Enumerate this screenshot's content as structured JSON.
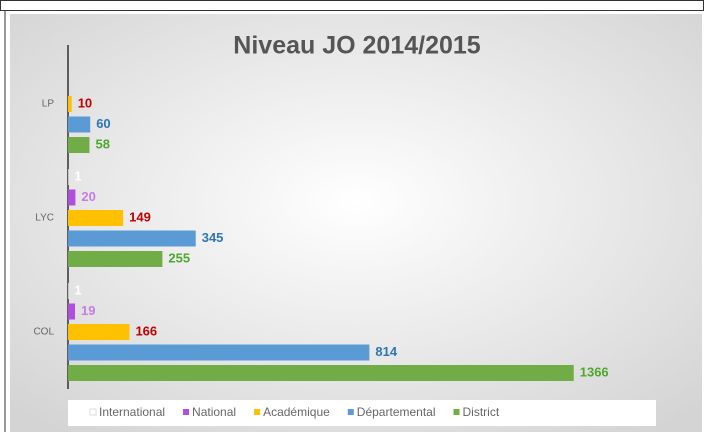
{
  "chart_data": {
    "type": "hbar_grouped",
    "title": "Niveau JO 2014/2015",
    "categories": [
      "LP",
      "LYC",
      "COL"
    ],
    "series": [
      {
        "name": "International",
        "color": "#ffffff",
        "label_color": "#ffffff",
        "values": [
          null,
          1,
          1
        ]
      },
      {
        "name": "National",
        "color": "#b04fdc",
        "label_color": "#c77be6",
        "values": [
          null,
          20,
          19
        ]
      },
      {
        "name": "Académique",
        "color": "#ffc000",
        "label_color": "#c00000",
        "values": [
          10,
          149,
          166
        ]
      },
      {
        "name": "Départemental",
        "color": "#5b9bd5",
        "label_color": "#2e75b6",
        "values": [
          60,
          345,
          814
        ]
      },
      {
        "name": "District",
        "color": "#70ad47",
        "label_color": "#4ea72e",
        "values": [
          58,
          255,
          1366
        ]
      }
    ],
    "xlim": [
      0,
      1680
    ],
    "legend": "bottom"
  }
}
